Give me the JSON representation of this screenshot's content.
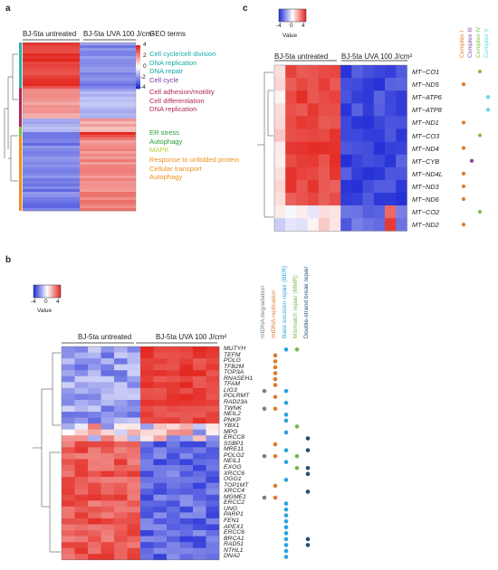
{
  "panels": {
    "a": {
      "label": "a",
      "groups": [
        "BJ-5ta untreated",
        "BJ-5ta UVA 100 J/cm²"
      ],
      "geo_header": "GEO terms",
      "colorbar_ticks": [
        "4",
        "2",
        "0",
        "-2",
        "-4"
      ],
      "clusters": [
        {
          "color": "#2bb3a8",
          "terms": [
            "Cell cycle/cell division",
            "DNA replication",
            "DNA repair",
            "Cell cycle"
          ],
          "term_colors": [
            "#16a9a6",
            "#16a9a6",
            "#16a9a6",
            "#7b3fa0"
          ]
        },
        {
          "color": "#b0295a",
          "terms": [
            "Cell adhesion/motility",
            "Cell differentiation",
            "DNA replication"
          ],
          "term_colors": [
            "#b0295a",
            "#b0295a",
            "#b0295a"
          ]
        },
        {
          "color": "#7cc242",
          "terms": [
            "ER stress",
            "Autophagy",
            "MAPK"
          ],
          "term_colors": [
            "#2b9e3a",
            "#2b9e3a",
            "#b5d334"
          ]
        },
        {
          "color": "#f0901e",
          "terms": [
            "Response to unfolded protein",
            "Cellular transport",
            "Autophagy"
          ],
          "term_colors": [
            "#f0901e",
            "#f0901e",
            "#f0901e"
          ]
        }
      ]
    },
    "b": {
      "label": "b",
      "groups": [
        "BJ-5ta untreated",
        "BJ-5ta UVA 100 J/cm²"
      ],
      "colorbar_ticks": [
        "-4",
        "0",
        "4"
      ],
      "colorbar_title": "Value",
      "categories": [
        {
          "name": "mtDNA degradation",
          "color": "#7f7f7f"
        },
        {
          "name": "mtDNA replication",
          "color": "#e07b2a"
        },
        {
          "name": "Base excision repair (BER)",
          "color": "#2aa1de"
        },
        {
          "name": "Mismatch repair (MMR)",
          "color": "#76b84a"
        },
        {
          "name": "Double-strand break repair",
          "color": "#1f4e79"
        }
      ],
      "genes": [
        "MUTYH",
        "TEFM",
        "POLG",
        "TFB2M",
        "TOP3A",
        "RNASEH1",
        "TFAM",
        "LIG3",
        "POLRMT",
        "RAD23A",
        "TWNK",
        "NEIL2",
        "PNKP",
        "YBX1",
        "MPG",
        "ERCC8",
        "SSBP1",
        "MRE11",
        "POLG2",
        "NEIL1",
        "EXOG",
        "XRCC6",
        "OGG1",
        "TOP1MT",
        "XRCC4",
        "MGME1",
        "ERCC2",
        "UNG",
        "PARP1",
        "FEN1",
        "APEX1",
        "ERCC6",
        "BRCA1",
        "RAD51",
        "NTHL1",
        "DNA2"
      ],
      "membership": [
        [
          0,
          0,
          1,
          1,
          0
        ],
        [
          0,
          1,
          0,
          0,
          0
        ],
        [
          0,
          1,
          0,
          0,
          0
        ],
        [
          0,
          1,
          0,
          0,
          0
        ],
        [
          0,
          1,
          0,
          0,
          0
        ],
        [
          0,
          1,
          0,
          0,
          0
        ],
        [
          0,
          1,
          0,
          0,
          0
        ],
        [
          1,
          0,
          1,
          0,
          0
        ],
        [
          0,
          1,
          0,
          0,
          0
        ],
        [
          0,
          0,
          1,
          0,
          0
        ],
        [
          1,
          1,
          0,
          0,
          0
        ],
        [
          0,
          0,
          1,
          0,
          0
        ],
        [
          0,
          0,
          1,
          0,
          0
        ],
        [
          0,
          0,
          0,
          1,
          0
        ],
        [
          0,
          0,
          1,
          0,
          0
        ],
        [
          0,
          0,
          0,
          0,
          1
        ],
        [
          0,
          1,
          0,
          0,
          0
        ],
        [
          0,
          0,
          1,
          0,
          1
        ],
        [
          1,
          1,
          0,
          1,
          0
        ],
        [
          0,
          0,
          1,
          0,
          0
        ],
        [
          0,
          0,
          0,
          1,
          1
        ],
        [
          0,
          0,
          0,
          0,
          1
        ],
        [
          0,
          0,
          1,
          0,
          0
        ],
        [
          0,
          1,
          0,
          0,
          0
        ],
        [
          0,
          0,
          0,
          0,
          1
        ],
        [
          1,
          1,
          0,
          0,
          0
        ],
        [
          0,
          0,
          1,
          0,
          0
        ],
        [
          0,
          0,
          1,
          0,
          0
        ],
        [
          0,
          0,
          1,
          0,
          0
        ],
        [
          0,
          0,
          1,
          0,
          0
        ],
        [
          0,
          0,
          1,
          0,
          0
        ],
        [
          0,
          0,
          1,
          0,
          0
        ],
        [
          0,
          0,
          1,
          0,
          1
        ],
        [
          0,
          0,
          1,
          0,
          1
        ],
        [
          0,
          0,
          1,
          0,
          0
        ],
        [
          0,
          0,
          1,
          0,
          0
        ]
      ]
    },
    "c": {
      "label": "c",
      "groups": [
        "BJ-5ta untreated",
        "BJ-5ta UVA 100 J/cm²"
      ],
      "colorbar_ticks": [
        "-4",
        "0",
        "4"
      ],
      "colorbar_title": "Value",
      "complexes": [
        {
          "name": "Complex I",
          "color": "#e07b2a"
        },
        {
          "name": "Complex III",
          "color": "#8a3fa6"
        },
        {
          "name": "Complex IV",
          "color": "#7cc242"
        },
        {
          "name": "Complex V",
          "color": "#5fd6e8"
        }
      ],
      "genes": [
        "MT−CO1",
        "MT−ND5",
        "MT−ATP6",
        "MT−ATP8",
        "MT−ND1",
        "MT−CO3",
        "MT−ND4",
        "MT−CYB",
        "MT−ND4L",
        "MT−ND3",
        "MT−ND6",
        "MT−CO2",
        "MT−ND2"
      ],
      "complex_index": [
        2,
        0,
        3,
        3,
        0,
        2,
        0,
        1,
        0,
        0,
        0,
        2,
        0
      ]
    }
  }
}
